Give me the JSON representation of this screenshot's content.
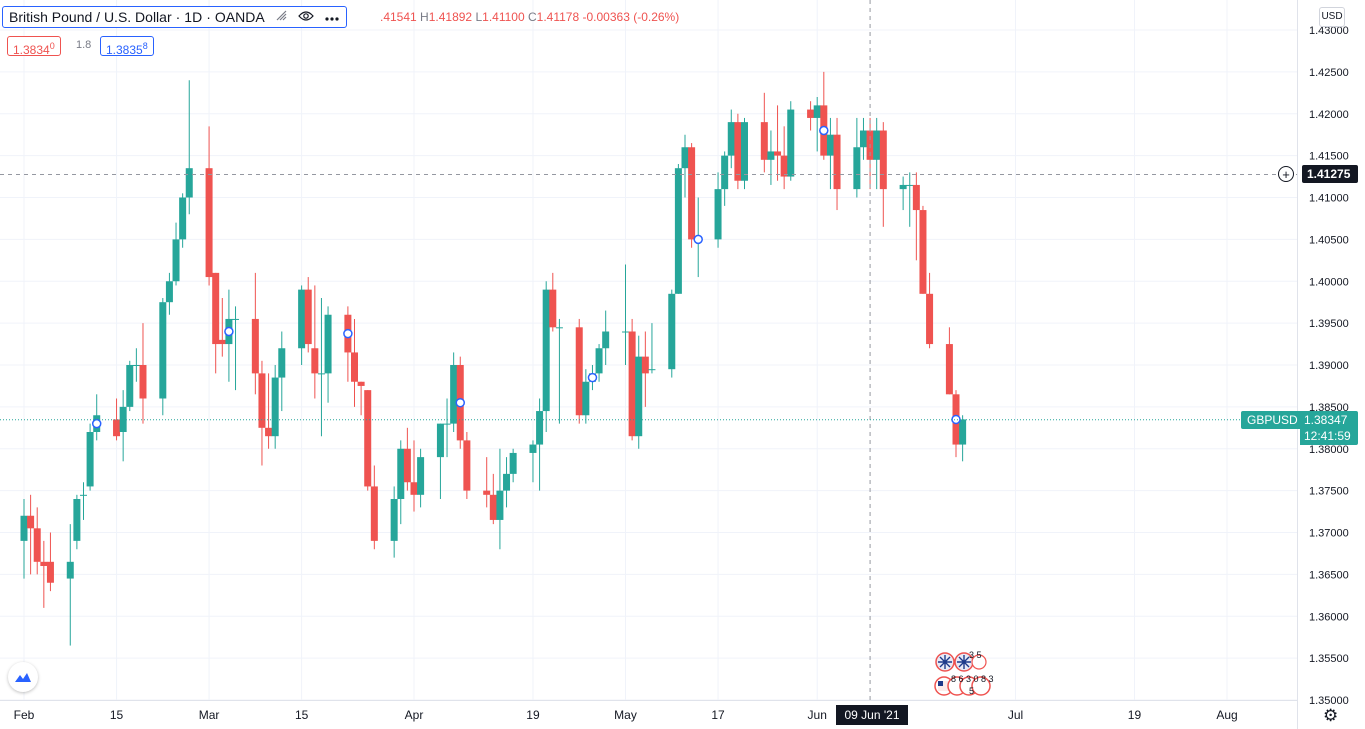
{
  "legend": {
    "symbol_name": "British Pound / U.S. Dollar",
    "interval": "1D",
    "exchange": "OANDA",
    "ohlc": {
      "open_value": ".41541",
      "high_label": "H",
      "high_value": "1.41892",
      "low_label": "L",
      "low_value": "1.41100",
      "close_label": "C",
      "close_value": "1.41178",
      "change": "-0.00363 (-0.26%)"
    }
  },
  "trade": {
    "sell_price": "1.3834",
    "sell_price_small": "0",
    "spread": "1.8",
    "buy_price": "1.3835",
    "buy_price_small": "8"
  },
  "currency_button": "USD",
  "crosshair_price": "1.41275",
  "symbol_tag": "GBPUSD",
  "last_price": "1.38347",
  "countdown": "12:41:59",
  "crosshair_date": "09 Jun '21",
  "events": {
    "top_count": "3 5",
    "bottom_counts": "8 6 3 0 8 3",
    "bottom_tail": "5"
  },
  "colors": {
    "up": "#26a69a",
    "down": "#ef5350",
    "crosshair": "#131722",
    "accent": "#2962ff"
  },
  "icons": {
    "eye": "eye-icon",
    "more": "more-dots-icon",
    "hide": "hide-legend-icon",
    "gear": "gear-icon",
    "logo": "tradingview-logo-icon"
  },
  "chart_data": {
    "type": "candlestick",
    "symbol": "GBPUSD",
    "y_ticks": [
      "1.43000",
      "1.42500",
      "1.42000",
      "1.41500",
      "1.41000",
      "1.40500",
      "1.40000",
      "1.39500",
      "1.39000",
      "1.38500",
      "1.38000",
      "1.37500",
      "1.37000",
      "1.36500",
      "1.36000",
      "1.35500",
      "1.35000"
    ],
    "x_ticks": [
      {
        "label": "Feb",
        "date": "2021-02-01"
      },
      {
        "label": "15",
        "date": "2021-02-15"
      },
      {
        "label": "Mar",
        "date": "2021-03-01"
      },
      {
        "label": "15",
        "date": "2021-03-15"
      },
      {
        "label": "Apr",
        "date": "2021-04-01"
      },
      {
        "label": "19",
        "date": "2021-04-19"
      },
      {
        "label": "May",
        "date": "2021-05-03"
      },
      {
        "label": "17",
        "date": "2021-05-17"
      },
      {
        "label": "Jun",
        "date": "2021-06-01"
      },
      {
        "label": "Jul",
        "date": "2021-07-01"
      },
      {
        "label": "19",
        "date": "2021-07-19"
      },
      {
        "label": "Aug",
        "date": "2021-08-02"
      }
    ],
    "ylim": [
      1.35,
      1.43
    ],
    "candles": [
      {
        "t": "2021-02-01",
        "o": 1.369,
        "h": 1.374,
        "l": 1.3645,
        "c": 1.372
      },
      {
        "t": "2021-02-02",
        "o": 1.372,
        "h": 1.3745,
        "l": 1.365,
        "c": 1.3705
      },
      {
        "t": "2021-02-03",
        "o": 1.3705,
        "h": 1.373,
        "l": 1.365,
        "c": 1.3665
      },
      {
        "t": "2021-02-04",
        "o": 1.3665,
        "h": 1.369,
        "l": 1.361,
        "c": 1.366
      },
      {
        "t": "2021-02-05",
        "o": 1.3665,
        "h": 1.37,
        "l": 1.363,
        "c": 1.364
      },
      {
        "t": "2021-02-08",
        "o": 1.3645,
        "h": 1.371,
        "l": 1.3565,
        "c": 1.3665
      },
      {
        "t": "2021-02-09",
        "o": 1.369,
        "h": 1.3745,
        "l": 1.368,
        "c": 1.374
      },
      {
        "t": "2021-02-10",
        "o": 1.3745,
        "h": 1.376,
        "l": 1.3715,
        "c": 1.3745
      },
      {
        "t": "2021-02-11",
        "o": 1.3755,
        "h": 1.383,
        "l": 1.375,
        "c": 1.382
      },
      {
        "t": "2021-02-12",
        "o": 1.382,
        "h": 1.3865,
        "l": 1.381,
        "c": 1.384
      },
      {
        "t": "2021-02-15",
        "o": 1.3835,
        "h": 1.386,
        "l": 1.381,
        "c": 1.3815
      },
      {
        "t": "2021-02-16",
        "o": 1.382,
        "h": 1.387,
        "l": 1.3785,
        "c": 1.385
      },
      {
        "t": "2021-02-17",
        "o": 1.385,
        "h": 1.3905,
        "l": 1.3845,
        "c": 1.39
      },
      {
        "t": "2021-02-18",
        "o": 1.39,
        "h": 1.392,
        "l": 1.388,
        "c": 1.39
      },
      {
        "t": "2021-02-19",
        "o": 1.39,
        "h": 1.395,
        "l": 1.383,
        "c": 1.386
      },
      {
        "t": "2021-02-22",
        "o": 1.386,
        "h": 1.398,
        "l": 1.384,
        "c": 1.3975
      },
      {
        "t": "2021-02-23",
        "o": 1.3975,
        "h": 1.401,
        "l": 1.396,
        "c": 1.4
      },
      {
        "t": "2021-02-24",
        "o": 1.4,
        "h": 1.407,
        "l": 1.3995,
        "c": 1.405
      },
      {
        "t": "2021-02-25",
        "o": 1.405,
        "h": 1.4105,
        "l": 1.404,
        "c": 1.41
      },
      {
        "t": "2021-02-26",
        "o": 1.41,
        "h": 1.424,
        "l": 1.408,
        "c": 1.4135
      },
      {
        "t": "2021-03-01",
        "o": 1.4135,
        "h": 1.4185,
        "l": 1.3995,
        "c": 1.4005
      },
      {
        "t": "2021-03-02",
        "o": 1.401,
        "h": 1.401,
        "l": 1.389,
        "c": 1.3925
      },
      {
        "t": "2021-03-03",
        "o": 1.393,
        "h": 1.398,
        "l": 1.391,
        "c": 1.3925
      },
      {
        "t": "2021-03-04",
        "o": 1.3925,
        "h": 1.399,
        "l": 1.388,
        "c": 1.3955
      },
      {
        "t": "2021-03-05",
        "o": 1.3955,
        "h": 1.397,
        "l": 1.387,
        "c": 1.3955
      },
      {
        "t": "2021-03-08",
        "o": 1.3955,
        "h": 1.401,
        "l": 1.3865,
        "c": 1.389
      },
      {
        "t": "2021-03-09",
        "o": 1.389,
        "h": 1.3905,
        "l": 1.378,
        "c": 1.3825
      },
      {
        "t": "2021-03-10",
        "o": 1.3825,
        "h": 1.389,
        "l": 1.38,
        "c": 1.3815
      },
      {
        "t": "2021-03-11",
        "o": 1.3815,
        "h": 1.39,
        "l": 1.38,
        "c": 1.3885
      },
      {
        "t": "2021-03-12",
        "o": 1.3885,
        "h": 1.394,
        "l": 1.3845,
        "c": 1.392
      },
      {
        "t": "2021-03-15",
        "o": 1.392,
        "h": 1.3995,
        "l": 1.39,
        "c": 1.399
      },
      {
        "t": "2021-03-16",
        "o": 1.399,
        "h": 1.4005,
        "l": 1.3915,
        "c": 1.3925
      },
      {
        "t": "2021-03-17",
        "o": 1.392,
        "h": 1.3995,
        "l": 1.386,
        "c": 1.389
      },
      {
        "t": "2021-03-18",
        "o": 1.389,
        "h": 1.398,
        "l": 1.3815,
        "c": 1.389
      },
      {
        "t": "2021-03-19",
        "o": 1.389,
        "h": 1.397,
        "l": 1.3855,
        "c": 1.396
      },
      {
        "t": "2021-03-22",
        "o": 1.396,
        "h": 1.397,
        "l": 1.388,
        "c": 1.3915
      },
      {
        "t": "2021-03-23",
        "o": 1.3915,
        "h": 1.3955,
        "l": 1.385,
        "c": 1.388
      },
      {
        "t": "2021-03-24",
        "o": 1.388,
        "h": 1.388,
        "l": 1.384,
        "c": 1.3875
      },
      {
        "t": "2021-03-25",
        "o": 1.387,
        "h": 1.387,
        "l": 1.375,
        "c": 1.3755
      },
      {
        "t": "2021-03-26",
        "o": 1.3755,
        "h": 1.378,
        "l": 1.368,
        "c": 1.369
      },
      {
        "t": "2021-03-29",
        "o": 1.369,
        "h": 1.3755,
        "l": 1.367,
        "c": 1.374
      },
      {
        "t": "2021-03-30",
        "o": 1.374,
        "h": 1.381,
        "l": 1.371,
        "c": 1.38
      },
      {
        "t": "2021-03-31",
        "o": 1.38,
        "h": 1.3825,
        "l": 1.375,
        "c": 1.376
      },
      {
        "t": "2021-04-01",
        "o": 1.376,
        "h": 1.381,
        "l": 1.3725,
        "c": 1.3745
      },
      {
        "t": "2021-04-02",
        "o": 1.3745,
        "h": 1.38,
        "l": 1.373,
        "c": 1.379
      },
      {
        "t": "2021-04-05",
        "o": 1.379,
        "h": 1.383,
        "l": 1.374,
        "c": 1.383
      },
      {
        "t": "2021-04-06",
        "o": 1.383,
        "h": 1.386,
        "l": 1.379,
        "c": 1.383
      },
      {
        "t": "2021-04-07",
        "o": 1.383,
        "h": 1.3915,
        "l": 1.382,
        "c": 1.39
      },
      {
        "t": "2021-04-08",
        "o": 1.39,
        "h": 1.391,
        "l": 1.38,
        "c": 1.381
      },
      {
        "t": "2021-04-09",
        "o": 1.381,
        "h": 1.382,
        "l": 1.374,
        "c": 1.375
      },
      {
        "t": "2021-04-12",
        "o": 1.375,
        "h": 1.379,
        "l": 1.373,
        "c": 1.3745
      },
      {
        "t": "2021-04-13",
        "o": 1.3745,
        "h": 1.377,
        "l": 1.371,
        "c": 1.3715
      },
      {
        "t": "2021-04-14",
        "o": 1.3715,
        "h": 1.38,
        "l": 1.368,
        "c": 1.375
      },
      {
        "t": "2021-04-15",
        "o": 1.375,
        "h": 1.379,
        "l": 1.373,
        "c": 1.377
      },
      {
        "t": "2021-04-16",
        "o": 1.377,
        "h": 1.38,
        "l": 1.376,
        "c": 1.3795
      },
      {
        "t": "2021-04-19",
        "o": 1.3795,
        "h": 1.381,
        "l": 1.376,
        "c": 1.3805
      },
      {
        "t": "2021-04-20",
        "o": 1.3805,
        "h": 1.386,
        "l": 1.375,
        "c": 1.3845
      },
      {
        "t": "2021-04-21",
        "o": 1.3845,
        "h": 1.4,
        "l": 1.382,
        "c": 1.399
      },
      {
        "t": "2021-04-22",
        "o": 1.399,
        "h": 1.401,
        "l": 1.394,
        "c": 1.3945
      },
      {
        "t": "2021-04-23",
        "o": 1.3945,
        "h": 1.3955,
        "l": 1.383,
        "c": 1.3945
      },
      {
        "t": "2021-04-26",
        "o": 1.3945,
        "h": 1.3955,
        "l": 1.383,
        "c": 1.384
      },
      {
        "t": "2021-04-27",
        "o": 1.384,
        "h": 1.3895,
        "l": 1.383,
        "c": 1.388
      },
      {
        "t": "2021-04-28",
        "o": 1.388,
        "h": 1.39,
        "l": 1.387,
        "c": 1.389
      },
      {
        "t": "2021-04-29",
        "o": 1.389,
        "h": 1.3925,
        "l": 1.388,
        "c": 1.392
      },
      {
        "t": "2021-04-30",
        "o": 1.392,
        "h": 1.3965,
        "l": 1.39,
        "c": 1.394
      },
      {
        "t": "2021-05-03",
        "o": 1.394,
        "h": 1.402,
        "l": 1.39,
        "c": 1.394
      },
      {
        "t": "2021-05-04",
        "o": 1.394,
        "h": 1.3955,
        "l": 1.381,
        "c": 1.3815
      },
      {
        "t": "2021-05-05",
        "o": 1.3815,
        "h": 1.3935,
        "l": 1.38,
        "c": 1.391
      },
      {
        "t": "2021-05-06",
        "o": 1.391,
        "h": 1.394,
        "l": 1.385,
        "c": 1.389
      },
      {
        "t": "2021-05-07",
        "o": 1.3895,
        "h": 1.395,
        "l": 1.389,
        "c": 1.3895
      },
      {
        "t": "2021-05-10",
        "o": 1.3895,
        "h": 1.399,
        "l": 1.3885,
        "c": 1.3985
      },
      {
        "t": "2021-05-11",
        "o": 1.3985,
        "h": 1.414,
        "l": 1.3985,
        "c": 1.4135
      },
      {
        "t": "2021-05-12",
        "o": 1.4135,
        "h": 1.4175,
        "l": 1.41,
        "c": 1.416
      },
      {
        "t": "2021-05-13",
        "o": 1.416,
        "h": 1.4165,
        "l": 1.404,
        "c": 1.405
      },
      {
        "t": "2021-05-14",
        "o": 1.405,
        "h": 1.41,
        "l": 1.4005,
        "c": 1.405
      },
      {
        "t": "2021-05-17",
        "o": 1.405,
        "h": 1.413,
        "l": 1.404,
        "c": 1.411
      },
      {
        "t": "2021-05-18",
        "o": 1.411,
        "h": 1.4155,
        "l": 1.409,
        "c": 1.415
      },
      {
        "t": "2021-05-19",
        "o": 1.415,
        "h": 1.4205,
        "l": 1.4135,
        "c": 1.419
      },
      {
        "t": "2021-05-20",
        "o": 1.419,
        "h": 1.42,
        "l": 1.411,
        "c": 1.412
      },
      {
        "t": "2021-05-21",
        "o": 1.412,
        "h": 1.4195,
        "l": 1.411,
        "c": 1.419
      },
      {
        "t": "2021-05-24",
        "o": 1.419,
        "h": 1.4225,
        "l": 1.413,
        "c": 1.4145
      },
      {
        "t": "2021-05-25",
        "o": 1.4145,
        "h": 1.418,
        "l": 1.4115,
        "c": 1.4155
      },
      {
        "t": "2021-05-26",
        "o": 1.4155,
        "h": 1.421,
        "l": 1.412,
        "c": 1.415
      },
      {
        "t": "2021-05-27",
        "o": 1.415,
        "h": 1.4185,
        "l": 1.411,
        "c": 1.4125
      },
      {
        "t": "2021-05-28",
        "o": 1.4125,
        "h": 1.4215,
        "l": 1.412,
        "c": 1.4205
      },
      {
        "t": "2021-05-31",
        "o": 1.4205,
        "h": 1.4215,
        "l": 1.418,
        "c": 1.4195
      },
      {
        "t": "2021-06-01",
        "o": 1.4195,
        "h": 1.422,
        "l": 1.4155,
        "c": 1.421
      },
      {
        "t": "2021-06-02",
        "o": 1.421,
        "h": 1.425,
        "l": 1.4145,
        "c": 1.415
      },
      {
        "t": "2021-06-03",
        "o": 1.415,
        "h": 1.4195,
        "l": 1.411,
        "c": 1.4175
      },
      {
        "t": "2021-06-04",
        "o": 1.4175,
        "h": 1.4195,
        "l": 1.4085,
        "c": 1.411
      },
      {
        "t": "2021-06-07",
        "o": 1.411,
        "h": 1.4195,
        "l": 1.41,
        "c": 1.416
      },
      {
        "t": "2021-06-08",
        "o": 1.416,
        "h": 1.4195,
        "l": 1.4145,
        "c": 1.418
      },
      {
        "t": "2021-06-09",
        "o": 1.418,
        "h": 1.4195,
        "l": 1.411,
        "c": 1.4145
      },
      {
        "t": "2021-06-10",
        "o": 1.4145,
        "h": 1.4195,
        "l": 1.411,
        "c": 1.418
      },
      {
        "t": "2021-06-11",
        "o": 1.418,
        "h": 1.419,
        "l": 1.4065,
        "c": 1.411
      },
      {
        "t": "2021-06-14",
        "o": 1.411,
        "h": 1.4125,
        "l": 1.4085,
        "c": 1.4115
      },
      {
        "t": "2021-06-15",
        "o": 1.4115,
        "h": 1.413,
        "l": 1.4065,
        "c": 1.4115
      },
      {
        "t": "2021-06-16",
        "o": 1.4115,
        "h": 1.413,
        "l": 1.4025,
        "c": 1.4085
      },
      {
        "t": "2021-06-17",
        "o": 1.4085,
        "h": 1.409,
        "l": 1.3985,
        "c": 1.3985
      },
      {
        "t": "2021-06-18",
        "o": 1.3985,
        "h": 1.401,
        "l": 1.392,
        "c": 1.3925
      },
      {
        "t": "2021-06-21",
        "o": 1.3925,
        "h": 1.3945,
        "l": 1.3865,
        "c": 1.3865
      },
      {
        "t": "2021-06-22",
        "o": 1.3865,
        "h": 1.387,
        "l": 1.379,
        "c": 1.3805
      },
      {
        "t": "2021-06-23",
        "o": 1.3805,
        "h": 1.384,
        "l": 1.3785,
        "c": 1.3835
      }
    ],
    "series_markers": [
      "2021-02-12",
      "2021-03-04",
      "2021-03-22",
      "2021-04-08",
      "2021-04-28",
      "2021-05-14",
      "2021-06-02",
      "2021-06-22"
    ],
    "crosshair": {
      "price": 1.41275,
      "date": "2021-06-09"
    },
    "last_price_line": 1.38347
  }
}
